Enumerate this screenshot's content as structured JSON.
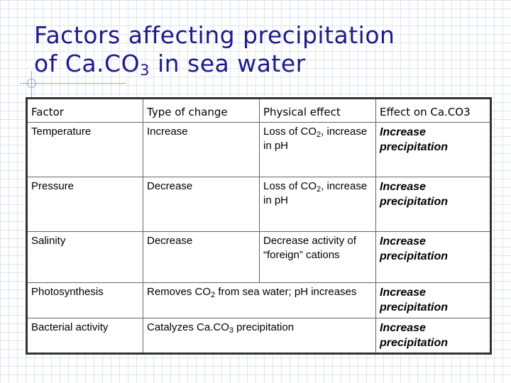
{
  "title": {
    "line1": "Factors affecting precipitation",
    "line2_prefix": "of Ca.CO",
    "line2_sub": "3",
    "line2_suffix": " in sea water"
  },
  "table": {
    "headers": [
      "Factor",
      "Type of change",
      "Physical effect",
      "Effect on Ca.CO3"
    ],
    "rows": [
      {
        "factor": "Temperature",
        "change": "Increase",
        "physical": {
          "pre": "Loss of CO",
          "sub": "2",
          "post": ", increase in pH"
        },
        "effect": "Increase precipitation"
      },
      {
        "factor": "Pressure",
        "change": "Decrease",
        "physical": {
          "pre": "Loss of CO",
          "sub": "2",
          "post": ", increase in pH"
        },
        "effect": "Increase precipitation"
      },
      {
        "factor": "Salinity",
        "change": "Decrease",
        "physical": {
          "pre": "Decrease activity of “foreign” cations",
          "sub": "",
          "post": ""
        },
        "effect": "Increase precipitation"
      },
      {
        "factor": "Photosynthesis",
        "merged": {
          "pre": "Removes CO",
          "sub": "2",
          "post": " from sea water; pH increases"
        },
        "effect": "Increase precipitation"
      },
      {
        "factor": "Bacterial activity",
        "merged": {
          "pre": "Catalyzes Ca.CO",
          "sub": "3",
          "post": " precipitation"
        },
        "effect": "Increase precipitation"
      }
    ]
  }
}
